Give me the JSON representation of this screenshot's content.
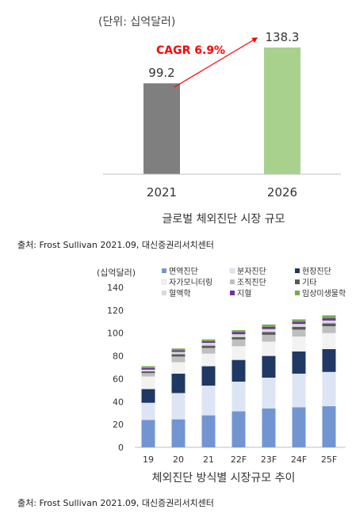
{
  "chart_data": [
    {
      "type": "bar",
      "unit_label": "(단위: 십억달러)",
      "categories": [
        "2021",
        "2026"
      ],
      "values": [
        99.2,
        138.3
      ],
      "colors": [
        "#7f7f7f",
        "#a9d18e"
      ],
      "annotation": "CAGR 6.9%",
      "annotation_color": "#ff0000",
      "title": "글로벌 체외진단 시장 규모"
    },
    {
      "type": "bar",
      "stacked": true,
      "unit_label": "(십억달러)",
      "categories": [
        "19",
        "20",
        "21",
        "22F",
        "23F",
        "24F",
        "25F"
      ],
      "ylim": [
        0,
        140
      ],
      "yticks": [
        "0",
        "20",
        "40",
        "60",
        "80",
        "100",
        "120",
        "140"
      ],
      "series": [
        {
          "name": "면역진단",
          "color": "#7295d2",
          "values": [
            24,
            24.5,
            28,
            31.5,
            34,
            35,
            36
          ]
        },
        {
          "name": "분자진단",
          "color": "#dde5f4",
          "values": [
            15,
            23,
            26,
            26,
            27,
            29.5,
            30
          ]
        },
        {
          "name": "현장진단",
          "color": "#1f3864",
          "values": [
            12,
            17,
            17,
            19,
            19,
            19.5,
            20
          ]
        },
        {
          "name": "자가모니터링",
          "color": "#f2f2f2",
          "values": [
            11,
            10,
            11,
            12,
            12.5,
            13,
            14
          ]
        },
        {
          "name": "조직진단",
          "color": "#bfbfbf",
          "values": [
            3,
            5,
            5,
            6,
            6,
            6,
            6
          ]
        },
        {
          "name": "기타",
          "color": "#595959",
          "values": [
            1.5,
            2,
            2,
            2,
            2.5,
            2.5,
            2.5
          ]
        },
        {
          "name": "혈액학",
          "color": "#d9d9d9",
          "values": [
            1.5,
            2,
            2.5,
            2.5,
            2.5,
            2.5,
            2.5
          ]
        },
        {
          "name": "지혈",
          "color": "#7030a0",
          "values": [
            1.5,
            1.5,
            1.5,
            2,
            2,
            2,
            2
          ]
        },
        {
          "name": "임상미생물학",
          "color": "#70ad47",
          "values": [
            1.5,
            1.5,
            1.5,
            1.5,
            2,
            2,
            2.5
          ]
        }
      ],
      "title": "체외진단 방식별 시장규모 추이"
    }
  ],
  "sources": {
    "first": "출처: Frost Sullivan 2021.09, 대신증권리서치센터",
    "second": "출처: Frost Sullivan 2021.09, 대신증권리서치센터"
  }
}
